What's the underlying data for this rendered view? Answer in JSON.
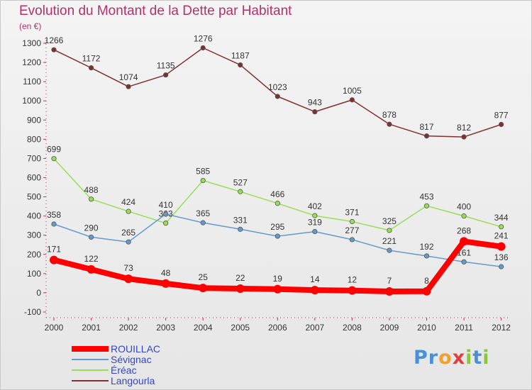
{
  "chart_data": {
    "type": "line",
    "title": "Evolution du Montant de la Dette par Habitant",
    "ylabel": "(en €)",
    "xlabel": "",
    "categories": [
      "2000",
      "2001",
      "2002",
      "2003",
      "2004",
      "2005",
      "2006",
      "2007",
      "2008",
      "2009",
      "2010",
      "2011",
      "2012"
    ],
    "ylim": [
      -100,
      1300
    ],
    "yticks": [
      -100,
      0,
      100,
      200,
      300,
      400,
      500,
      600,
      700,
      800,
      900,
      1000,
      1100,
      1200,
      1300
    ],
    "grid": false,
    "legend_position": "bottom-left",
    "series": [
      {
        "name": "ROUILLAC",
        "color": "#ff0000",
        "values": [
          171,
          122,
          73,
          48,
          25,
          22,
          19,
          14,
          12,
          7,
          8,
          268,
          241
        ]
      },
      {
        "name": "Sévignac",
        "color": "#6699cc",
        "values": [
          358,
          290,
          265,
          410,
          365,
          331,
          295,
          319,
          277,
          221,
          192,
          161,
          136
        ]
      },
      {
        "name": "Éréac",
        "color": "#99dd55",
        "values": [
          699,
          488,
          424,
          363,
          585,
          527,
          466,
          402,
          371,
          325,
          453,
          400,
          344
        ]
      },
      {
        "name": "Langourla",
        "color": "#803030",
        "values": [
          1266,
          1172,
          1074,
          1135,
          1276,
          1187,
          1023,
          943,
          1005,
          878,
          817,
          812,
          877
        ]
      }
    ]
  },
  "brand": {
    "letters": [
      "P",
      "r",
      "o",
      "x",
      "i",
      "t",
      "i"
    ],
    "colors": [
      "#4a90d9",
      "#4a90d9",
      "#f0a030",
      "#e23c3c",
      "#8cc63e",
      "#4a90d9",
      "#8cc63e"
    ]
  }
}
